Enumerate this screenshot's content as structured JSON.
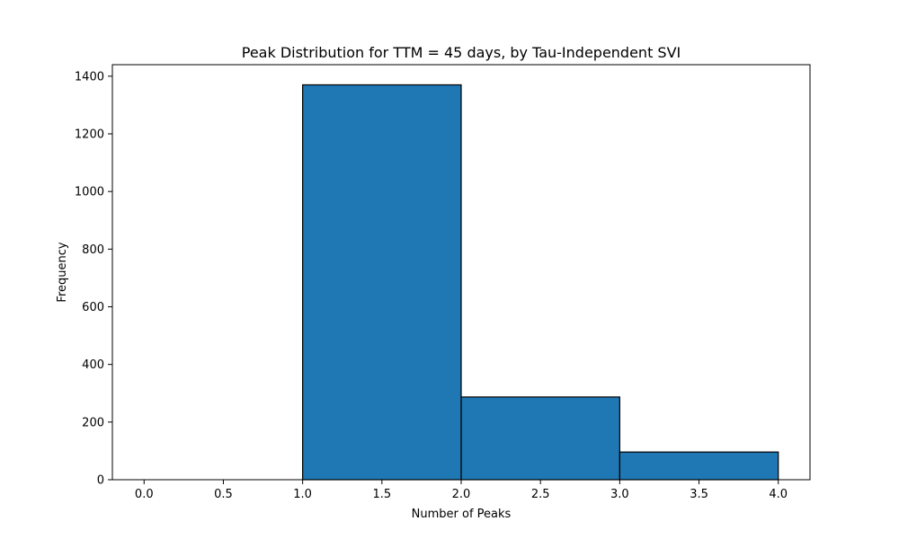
{
  "chart_data": {
    "type": "bar",
    "title": "Peak Distribution for TTM = 45 days, by Tau-Independent SVI",
    "xlabel": "Number of Peaks",
    "ylabel": "Frequency",
    "bins": [
      {
        "x0": 0.0,
        "x1": 1.0,
        "value": 0
      },
      {
        "x0": 1.0,
        "x1": 2.0,
        "value": 1370
      },
      {
        "x0": 2.0,
        "x1": 3.0,
        "value": 287
      },
      {
        "x0": 3.0,
        "x1": 4.0,
        "value": 96
      }
    ],
    "xlim": [
      -0.2,
      4.2
    ],
    "ylim": [
      0,
      1440
    ],
    "xticks": [
      0.0,
      0.5,
      1.0,
      1.5,
      2.0,
      2.5,
      3.0,
      3.5,
      4.0
    ],
    "xtick_labels": [
      "0.0",
      "0.5",
      "1.0",
      "1.5",
      "2.0",
      "2.5",
      "3.0",
      "3.5",
      "4.0"
    ],
    "yticks": [
      0,
      200,
      400,
      600,
      800,
      1000,
      1200,
      1400
    ],
    "ytick_labels": [
      "0",
      "200",
      "400",
      "600",
      "800",
      "1000",
      "1200",
      "1400"
    ],
    "bar_color": "#1f77b4",
    "edge_color": "#000000",
    "grid": false,
    "legend": "none"
  }
}
